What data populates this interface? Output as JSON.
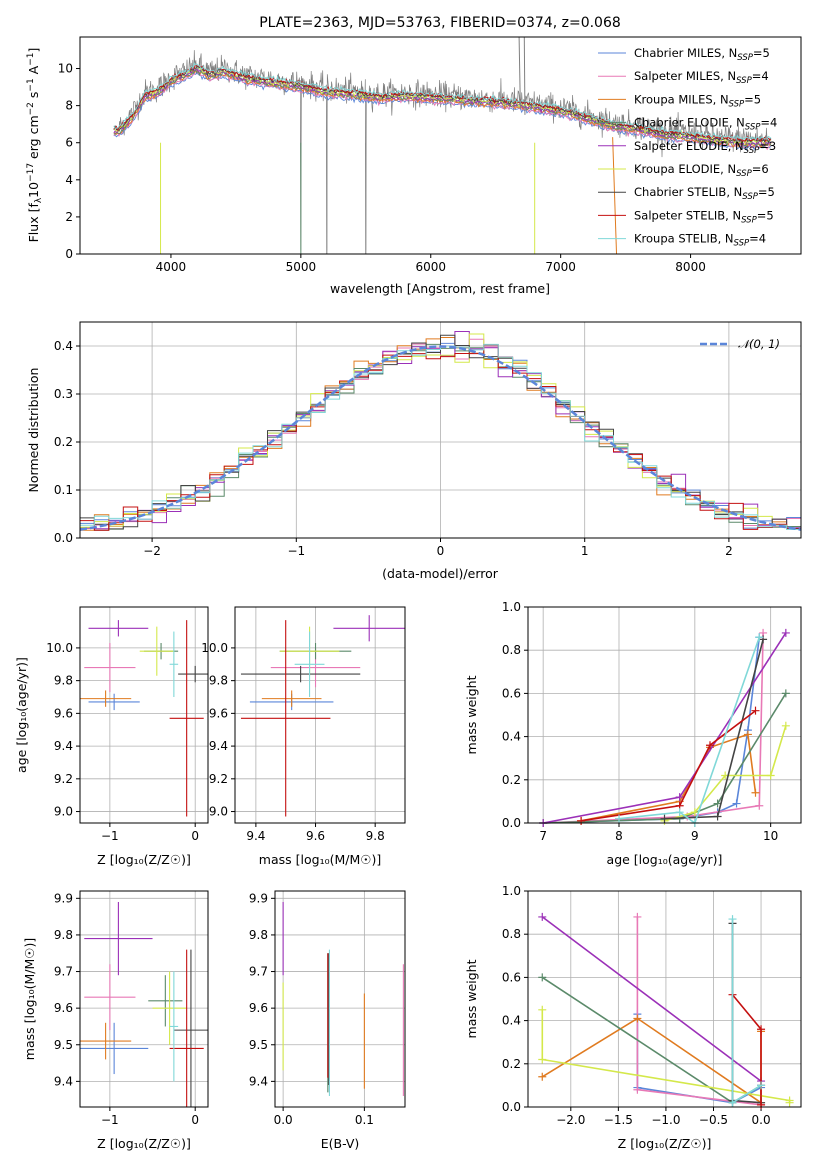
{
  "colors": [
    "#5b86d9",
    "#e879b6",
    "#e07b20",
    "#5b8a6a",
    "#9b30b8",
    "#d4e84a",
    "#444444",
    "#c41010",
    "#80d8d8"
  ],
  "chart_data": [
    {
      "type": "line",
      "title": "PLATE=2363, MJD=53763, FIBERID=0374, z=0.068",
      "xlabel": "wavelength [Angstrom, rest frame]",
      "ylabel_parts": [
        "Flux [f",
        "λ",
        "10",
        "−17",
        " erg cm",
        "−2",
        " s",
        "−1",
        " A",
        "−1",
        "]"
      ],
      "xlim": [
        3300,
        8850
      ],
      "ylim": [
        0,
        11.7
      ],
      "xticks": [
        4000,
        5000,
        6000,
        7000,
        8000
      ],
      "yticks": [
        0,
        2,
        4,
        6,
        8,
        10
      ],
      "x": [
        3600,
        3700,
        3800,
        3900,
        4000,
        4100,
        4200,
        4300,
        4400,
        4500,
        4600,
        4800,
        5000,
        5200,
        5400,
        5600,
        5800,
        6000,
        6200,
        6400,
        6600,
        6800,
        7000,
        7200,
        7400,
        7600,
        7800,
        8000,
        8200,
        8400,
        8600
      ],
      "data_flux": [
        6.8,
        7.6,
        8.7,
        8.9,
        9.5,
        9.8,
        10.2,
        9.8,
        10.0,
        9.8,
        9.6,
        9.4,
        9.2,
        8.9,
        8.8,
        8.6,
        8.7,
        8.6,
        8.5,
        8.4,
        8.3,
        8.1,
        7.9,
        7.5,
        7.1,
        6.9,
        6.6,
        6.5,
        6.3,
        6.2,
        6.2
      ],
      "model_flux": [
        6.6,
        7.3,
        8.5,
        8.7,
        9.3,
        9.6,
        10.0,
        9.6,
        9.8,
        9.6,
        9.4,
        9.2,
        9.0,
        8.7,
        8.6,
        8.4,
        8.5,
        8.4,
        8.3,
        8.2,
        8.1,
        7.9,
        7.7,
        7.3,
        6.9,
        6.7,
        6.4,
        6.3,
        6.1,
        6.0,
        6.0
      ],
      "legend": [
        {
          "name": "Chabrier MILES, N",
          "sub": "SSP",
          "val": "=5"
        },
        {
          "name": "Salpeter MILES, N",
          "sub": "SSP",
          "val": "=4"
        },
        {
          "name": "Kroupa MILES, N",
          "sub": "SSP",
          "val": "=5"
        },
        {
          "name": "Chabrier ELODIE, N",
          "sub": "SSP",
          "val": "=4"
        },
        {
          "name": "Salpeter ELODIE, N",
          "sub": "SSP",
          "val": "=3"
        },
        {
          "name": "Kroupa ELODIE, N",
          "sub": "SSP",
          "val": "=6"
        },
        {
          "name": "Chabrier STELIB, N",
          "sub": "SSP",
          "val": "=5"
        },
        {
          "name": "Salpeter STELIB, N",
          "sub": "SSP",
          "val": "=5"
        },
        {
          "name": "Kroupa STELIB, N",
          "sub": "SSP",
          "val": "=4"
        }
      ],
      "legend_placement": "top-right",
      "grid": false
    },
    {
      "type": "step-histogram",
      "xlabel": "(data-model)/error",
      "ylabel": "Normed distribution",
      "xlim": [
        -2.5,
        2.5
      ],
      "ylim": [
        0,
        0.45
      ],
      "xticks": [
        -2,
        -1,
        0,
        1,
        2
      ],
      "xtick_labels": [
        "−2",
        "−1",
        "0",
        "1",
        "2"
      ],
      "yticks": [
        0,
        0.1,
        0.2,
        0.3,
        0.4
      ],
      "ytick_labels": [
        "0.0",
        "0.1",
        "0.2",
        "0.3",
        "0.4"
      ],
      "bin_width": 0.1,
      "legend": "𝒩(0, 1)",
      "legend_placement": "top-right",
      "grid": true
    },
    {
      "type": "errorbar",
      "xlabel": "Z [log₁₀(Z/Z☉)]",
      "ylabel": "age  [log₁₀(age/yr)]",
      "xlim": [
        -1.35,
        0.15
      ],
      "ylim": [
        8.93,
        10.25
      ],
      "xticks": [
        -1,
        0
      ],
      "xtick_labels": [
        "−1",
        "0"
      ],
      "yticks": [
        9.0,
        9.2,
        9.4,
        9.6,
        9.8,
        10.0
      ],
      "ytick_labels": [
        "9.0",
        "9.2",
        "9.4",
        "9.6",
        "9.8",
        "10.0"
      ],
      "points": [
        {
          "x": -0.95,
          "y": 9.67,
          "xe": 0.3,
          "ye": 0.05
        },
        {
          "x": -1.0,
          "y": 9.88,
          "xe": 0.3,
          "ye": 0.15
        },
        {
          "x": -1.05,
          "y": 9.69,
          "xe": 0.3,
          "ye": 0.05
        },
        {
          "x": -0.4,
          "y": 9.98,
          "xe": 0.2,
          "ye": 0.05
        },
        {
          "x": -0.9,
          "y": 10.12,
          "xe": 0.35,
          "ye": 0.05
        },
        {
          "x": -0.45,
          "y": 9.98,
          "xe": 0.2,
          "ye": 0.15
        },
        {
          "x": 0.0,
          "y": 9.84,
          "xe": 0.2,
          "ye": 0.05
        },
        {
          "x": -0.1,
          "y": 9.57,
          "xe": 0.2,
          "ye": 0.6
        },
        {
          "x": -0.25,
          "y": 9.9,
          "xe": 0.05,
          "ye": 0.2
        }
      ]
    },
    {
      "type": "errorbar",
      "xlabel": "mass [log₁₀(M/M☉)]",
      "ylabel": "",
      "xlim": [
        9.33,
        9.9
      ],
      "ylim": [
        8.93,
        10.25
      ],
      "xticks": [
        9.4,
        9.6,
        9.8
      ],
      "xtick_labels": [
        "9.4",
        "9.6",
        "9.8"
      ],
      "yticks": [
        9.0,
        9.2,
        9.4,
        9.6,
        9.8,
        10.0
      ],
      "ytick_labels": [
        "9.0",
        "9.2",
        "9.4",
        "9.6",
        "9.8",
        "10.0"
      ],
      "points": [
        {
          "x": 9.52,
          "y": 9.67,
          "xe": 0.14,
          "ye": 0.05
        },
        {
          "x": 9.6,
          "y": 9.88,
          "xe": 0.15,
          "ye": 0.12
        },
        {
          "x": 9.52,
          "y": 9.69,
          "xe": 0.1,
          "ye": 0.05
        },
        {
          "x": 9.6,
          "y": 9.98,
          "xe": 0.12,
          "ye": 0.05
        },
        {
          "x": 9.78,
          "y": 10.12,
          "xe": 0.12,
          "ye": 0.08
        },
        {
          "x": 9.58,
          "y": 9.98,
          "xe": 0.1,
          "ye": 0.15
        },
        {
          "x": 9.55,
          "y": 9.84,
          "xe": 0.2,
          "ye": 0.05
        },
        {
          "x": 9.5,
          "y": 9.57,
          "xe": 0.15,
          "ye": 0.6
        },
        {
          "x": 9.58,
          "y": 9.9,
          "xe": 0.05,
          "ye": 0.2
        }
      ]
    },
    {
      "type": "line",
      "xlabel": "age  [log₁₀(age/yr)]",
      "ylabel": "mass weight",
      "xlim": [
        6.8,
        10.4
      ],
      "ylim": [
        0,
        1.0
      ],
      "xticks": [
        7,
        8,
        9,
        10
      ],
      "xtick_labels": [
        "7",
        "8",
        "9",
        "10"
      ],
      "yticks": [
        0,
        0.2,
        0.4,
        0.6,
        0.8,
        1.0
      ],
      "ytick_labels": [
        "0.0",
        "0.2",
        "0.4",
        "0.6",
        "0.8",
        "1.0"
      ],
      "series": [
        {
          "x": [
            7.0,
            8.8,
            9.3,
            9.55,
            9.7,
            9.85
          ],
          "y": [
            0.0,
            0.02,
            0.05,
            0.09,
            0.43,
            0.86
          ]
        },
        {
          "x": [
            7.0,
            8.9,
            9.85,
            9.9
          ],
          "y": [
            0.0,
            0.03,
            0.08,
            0.88
          ]
        },
        {
          "x": [
            7.5,
            8.8,
            9.2,
            9.7,
            9.8
          ],
          "y": [
            0.01,
            0.1,
            0.35,
            0.41,
            0.14
          ]
        },
        {
          "x": [
            7.0,
            8.8,
            9.3,
            10.2
          ],
          "y": [
            0.0,
            0.02,
            0.09,
            0.6
          ]
        },
        {
          "x": [
            7.0,
            8.8,
            10.2
          ],
          "y": [
            0.0,
            0.12,
            0.88
          ]
        },
        {
          "x": [
            8.6,
            9.0,
            9.4,
            10.0,
            10.2
          ],
          "y": [
            0.01,
            0.05,
            0.22,
            0.22,
            0.45
          ]
        },
        {
          "x": [
            8.6,
            9.3,
            9.9
          ],
          "y": [
            0.02,
            0.03,
            0.85
          ]
        },
        {
          "x": [
            7.5,
            8.8,
            9.2,
            9.8
          ],
          "y": [
            0.01,
            0.08,
            0.36,
            0.52
          ]
        },
        {
          "x": [
            8.0,
            8.8,
            9.0,
            9.85
          ],
          "y": [
            0.02,
            0.05,
            0.0,
            0.86
          ]
        }
      ]
    },
    {
      "type": "errorbar",
      "xlabel": "Z [log₁₀(Z/Z☉)]",
      "ylabel": "mass [log₁₀(M/M☉)]",
      "xlim": [
        -1.35,
        0.15
      ],
      "ylim": [
        9.33,
        9.92
      ],
      "xticks": [
        -1,
        0
      ],
      "xtick_labels": [
        "−1",
        "0"
      ],
      "yticks": [
        9.4,
        9.5,
        9.6,
        9.7,
        9.8,
        9.9
      ],
      "ytick_labels": [
        "9.4",
        "9.5",
        "9.6",
        "9.7",
        "9.8",
        "9.9"
      ],
      "points": [
        {
          "x": -0.95,
          "y": 9.49,
          "xe": 0.4,
          "ye": 0.07
        },
        {
          "x": -1.0,
          "y": 9.63,
          "xe": 0.3,
          "ye": 0.09
        },
        {
          "x": -1.05,
          "y": 9.51,
          "xe": 0.3,
          "ye": 0.05
        },
        {
          "x": -0.35,
          "y": 9.62,
          "xe": 0.2,
          "ye": 0.07
        },
        {
          "x": -0.9,
          "y": 9.79,
          "xe": 0.4,
          "ye": 0.1
        },
        {
          "x": -0.3,
          "y": 9.6,
          "xe": 0.2,
          "ye": 0.1
        },
        {
          "x": -0.05,
          "y": 9.54,
          "xe": 0.2,
          "ye": 0.22
        },
        {
          "x": -0.1,
          "y": 9.49,
          "xe": 0.2,
          "ye": 0.27
        },
        {
          "x": -0.25,
          "y": 9.55,
          "xe": 0.05,
          "ye": 0.15
        }
      ]
    },
    {
      "type": "errorbar",
      "xlabel": "E(B-V)",
      "ylabel": "",
      "xlim": [
        -0.01,
        0.15
      ],
      "ylim": [
        9.33,
        9.92
      ],
      "xticks": [
        0.0,
        0.1
      ],
      "xtick_labels": [
        "0.0",
        "0.1"
      ],
      "yticks": [
        9.4,
        9.5,
        9.6,
        9.7,
        9.8,
        9.9
      ],
      "ytick_labels": [
        "9.4",
        "9.5",
        "9.6",
        "9.7",
        "9.8",
        "9.9"
      ],
      "points": [
        {
          "x": 0.057,
          "y": 9.49,
          "xe": 0,
          "ye": 0.12
        },
        {
          "x": 0.148,
          "y": 9.54,
          "xe": 0,
          "ye": 0.18
        },
        {
          "x": 0.1,
          "y": 9.51,
          "xe": 0,
          "ye": 0.13
        },
        {
          "x": 0.055,
          "y": 9.56,
          "xe": 0,
          "ye": 0.19
        },
        {
          "x": 0.0,
          "y": 9.79,
          "xe": 0,
          "ye": 0.1
        },
        {
          "x": 0.0,
          "y": 9.55,
          "xe": 0,
          "ye": 0.12
        },
        {
          "x": 0.056,
          "y": 9.57,
          "xe": 0,
          "ye": 0.18
        },
        {
          "x": 0.055,
          "y": 9.58,
          "xe": 0,
          "ye": 0.17
        },
        {
          "x": 0.057,
          "y": 9.56,
          "xe": 0,
          "ye": 0.2
        }
      ]
    },
    {
      "type": "line",
      "xlabel": "Z [log₁₀(Z/Z☉)]",
      "ylabel": "mass weight",
      "xlim": [
        -2.45,
        0.42
      ],
      "ylim": [
        0,
        1.0
      ],
      "xticks": [
        -2.0,
        -1.5,
        -1.0,
        -0.5,
        0.0
      ],
      "xtick_labels": [
        "−2.0",
        "−1.5",
        "−1.0",
        "−0.5",
        "0.0"
      ],
      "yticks": [
        0,
        0.2,
        0.4,
        0.6,
        0.8,
        1.0
      ],
      "ytick_labels": [
        "0.0",
        "0.2",
        "0.4",
        "0.6",
        "0.8",
        "1.0"
      ],
      "series": [
        {
          "x": [
            -1.3,
            -1.3,
            -0.3,
            0.0,
            0.0
          ],
          "y": [
            0.43,
            0.09,
            0.02,
            0.09,
            0.02
          ]
        },
        {
          "x": [
            -1.3,
            -1.3,
            0.0,
            0.0
          ],
          "y": [
            0.88,
            0.08,
            0.01,
            0.1
          ]
        },
        {
          "x": [
            -2.3,
            -1.3,
            0.0,
            0.0
          ],
          "y": [
            0.14,
            0.41,
            0.02,
            0.35
          ]
        },
        {
          "x": [
            -2.3,
            -0.3,
            0.0
          ],
          "y": [
            0.6,
            0.02,
            0.1
          ]
        },
        {
          "x": [
            -2.3,
            0.0
          ],
          "y": [
            0.88,
            0.12
          ]
        },
        {
          "x": [
            -2.3,
            -2.3,
            0.3,
            0.3
          ],
          "y": [
            0.45,
            0.22,
            0.03,
            0.02
          ]
        },
        {
          "x": [
            -0.3,
            -0.3,
            0.0
          ],
          "y": [
            0.85,
            0.03,
            0.02
          ]
        },
        {
          "x": [
            -0.3,
            0.0,
            0.0
          ],
          "y": [
            0.52,
            0.36,
            0.01
          ]
        },
        {
          "x": [
            -0.3,
            -0.3,
            0.0
          ],
          "y": [
            0.87,
            0.02,
            0.1
          ]
        }
      ]
    }
  ]
}
